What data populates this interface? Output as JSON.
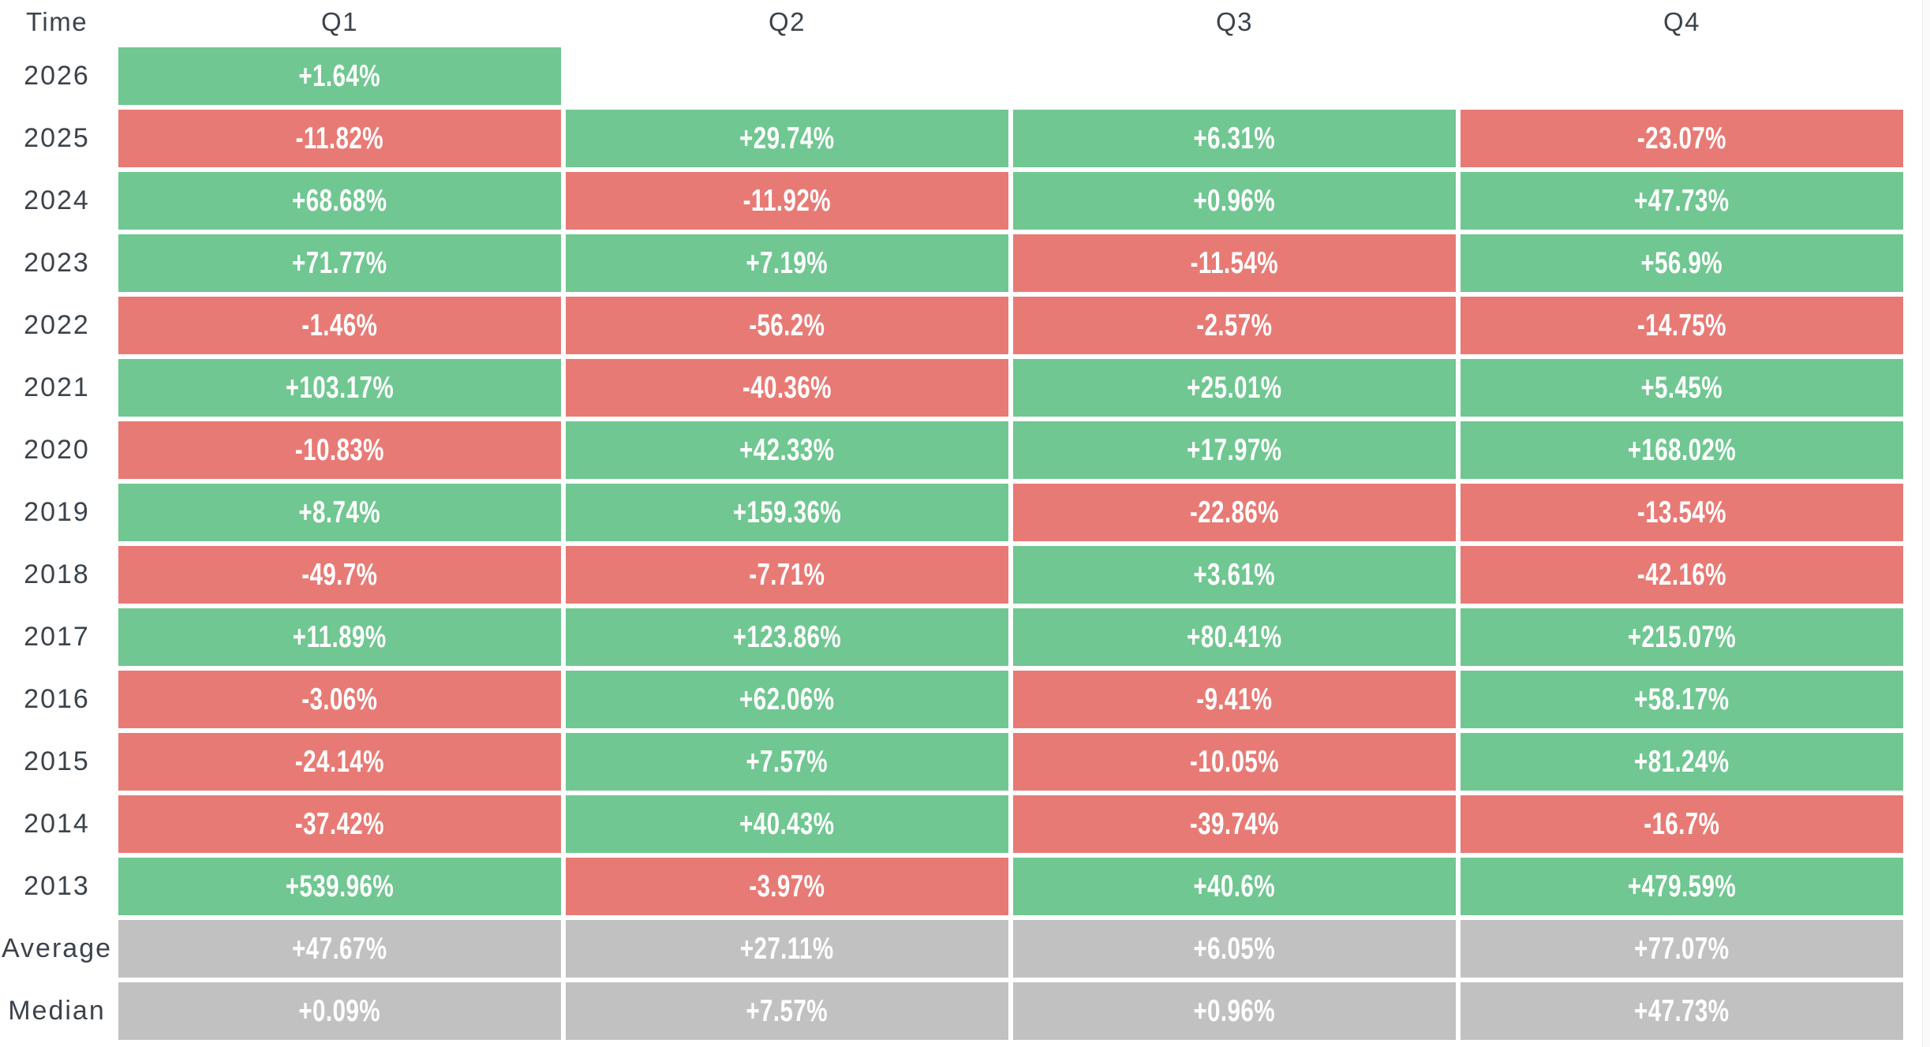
{
  "colors": {
    "positive": "#70c791",
    "negative": "#e87a75",
    "summary": "#c1c1c1",
    "value_text": "#ffffff",
    "label_text": "#3b434b",
    "background": "#ffffff"
  },
  "chart_data": {
    "type": "heatmap",
    "row_header": "Time",
    "columns": [
      "Q1",
      "Q2",
      "Q3",
      "Q4"
    ],
    "value_unit": "%",
    "color_rule": "green = positive return, red = negative return, gray = summary rows",
    "rows": [
      {
        "label": "2026",
        "kind": "year",
        "display": [
          "+1.64%",
          null,
          null,
          null
        ],
        "values": [
          1.64,
          null,
          null,
          null
        ]
      },
      {
        "label": "2025",
        "kind": "year",
        "display": [
          "-11.82%",
          "+29.74%",
          "+6.31%",
          "-23.07%"
        ],
        "values": [
          -11.82,
          29.74,
          6.31,
          -23.07
        ]
      },
      {
        "label": "2024",
        "kind": "year",
        "display": [
          "+68.68%",
          "-11.92%",
          "+0.96%",
          "+47.73%"
        ],
        "values": [
          68.68,
          -11.92,
          0.96,
          47.73
        ]
      },
      {
        "label": "2023",
        "kind": "year",
        "display": [
          "+71.77%",
          "+7.19%",
          "-11.54%",
          "+56.9%"
        ],
        "values": [
          71.77,
          7.19,
          -11.54,
          56.9
        ]
      },
      {
        "label": "2022",
        "kind": "year",
        "display": [
          "-1.46%",
          "-56.2%",
          "-2.57%",
          "-14.75%"
        ],
        "values": [
          -1.46,
          -56.2,
          -2.57,
          -14.75
        ]
      },
      {
        "label": "2021",
        "kind": "year",
        "display": [
          "+103.17%",
          "-40.36%",
          "+25.01%",
          "+5.45%"
        ],
        "values": [
          103.17,
          -40.36,
          25.01,
          5.45
        ]
      },
      {
        "label": "2020",
        "kind": "year",
        "display": [
          "-10.83%",
          "+42.33%",
          "+17.97%",
          "+168.02%"
        ],
        "values": [
          -10.83,
          42.33,
          17.97,
          168.02
        ]
      },
      {
        "label": "2019",
        "kind": "year",
        "display": [
          "+8.74%",
          "+159.36%",
          "-22.86%",
          "-13.54%"
        ],
        "values": [
          8.74,
          159.36,
          -22.86,
          -13.54
        ]
      },
      {
        "label": "2018",
        "kind": "year",
        "display": [
          "-49.7%",
          "-7.71%",
          "+3.61%",
          "-42.16%"
        ],
        "values": [
          -49.7,
          -7.71,
          3.61,
          -42.16
        ]
      },
      {
        "label": "2017",
        "kind": "year",
        "display": [
          "+11.89%",
          "+123.86%",
          "+80.41%",
          "+215.07%"
        ],
        "values": [
          11.89,
          123.86,
          80.41,
          215.07
        ]
      },
      {
        "label": "2016",
        "kind": "year",
        "display": [
          "-3.06%",
          "+62.06%",
          "-9.41%",
          "+58.17%"
        ],
        "values": [
          -3.06,
          62.06,
          -9.41,
          58.17
        ]
      },
      {
        "label": "2015",
        "kind": "year",
        "display": [
          "-24.14%",
          "+7.57%",
          "-10.05%",
          "+81.24%"
        ],
        "values": [
          -24.14,
          7.57,
          -10.05,
          81.24
        ]
      },
      {
        "label": "2014",
        "kind": "year",
        "display": [
          "-37.42%",
          "+40.43%",
          "-39.74%",
          "-16.7%"
        ],
        "values": [
          -37.42,
          40.43,
          -39.74,
          -16.7
        ]
      },
      {
        "label": "2013",
        "kind": "year",
        "display": [
          "+539.96%",
          "-3.97%",
          "+40.6%",
          "+479.59%"
        ],
        "values": [
          539.96,
          -3.97,
          40.6,
          479.59
        ]
      },
      {
        "label": "Average",
        "kind": "summary",
        "display": [
          "+47.67%",
          "+27.11%",
          "+6.05%",
          "+77.07%"
        ],
        "values": [
          47.67,
          27.11,
          6.05,
          77.07
        ]
      },
      {
        "label": "Median",
        "kind": "summary",
        "display": [
          "+0.09%",
          "+7.57%",
          "+0.96%",
          "+47.73%"
        ],
        "values": [
          0.09,
          7.57,
          0.96,
          47.73
        ]
      }
    ]
  }
}
